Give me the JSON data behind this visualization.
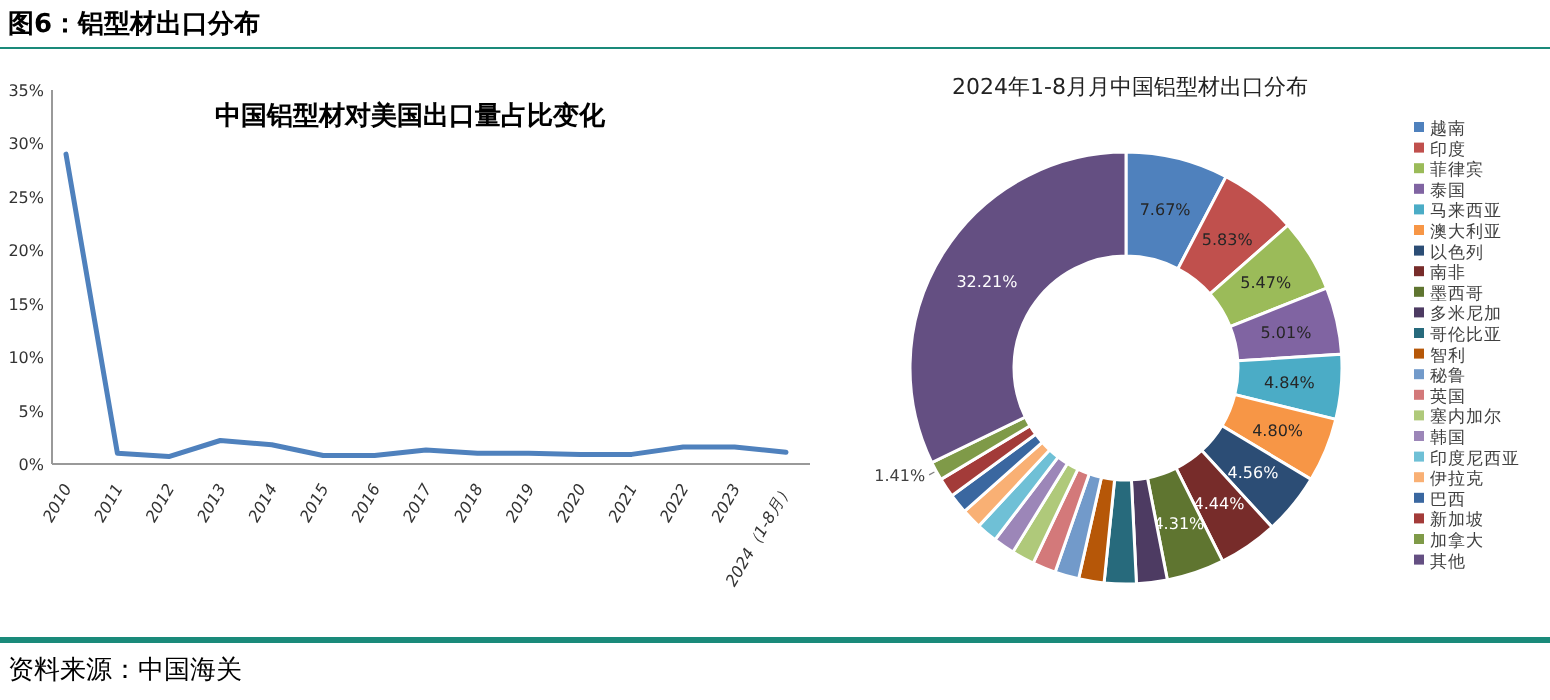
{
  "chart_data": [
    {
      "type": "line",
      "title": "中国铝型材对美国出口量占比变化",
      "categories": [
        "2010",
        "2011",
        "2012",
        "2013",
        "2014",
        "2015",
        "2016",
        "2017",
        "2018",
        "2019",
        "2020",
        "2021",
        "2022",
        "2023",
        "2024（1-8月）"
      ],
      "series": [
        {
          "color": "#4f81bd",
          "values": [
            29.0,
            1.0,
            0.7,
            2.2,
            1.8,
            0.8,
            0.8,
            1.3,
            1.0,
            1.0,
            0.9,
            0.9,
            1.6,
            1.6,
            1.1
          ]
        }
      ],
      "ylim": [
        0,
        35
      ],
      "yticks": [
        {
          "value": 0,
          "label": "0%"
        },
        {
          "value": 5,
          "label": "5%"
        },
        {
          "value": 10,
          "label": "10%"
        },
        {
          "value": 15,
          "label": "15%"
        },
        {
          "value": 20,
          "label": "20%"
        },
        {
          "value": 25,
          "label": "25%"
        },
        {
          "value": 30,
          "label": "30%"
        },
        {
          "value": 35,
          "label": "35%"
        }
      ],
      "grid": false,
      "marker": "none",
      "line_style": "solid",
      "annotations": [
        "图6：铝型材出口分布",
        "资料来源：中国海关"
      ]
    },
    {
      "type": "donut",
      "title": "2024年1-8月月中国铝型材出口分布",
      "categories": [
        "越南",
        "印度",
        "菲律宾",
        "泰国",
        "马来西亚",
        "澳大利亚",
        "以色列",
        "南非",
        "墨西哥",
        "多米尼加",
        "哥伦比亚",
        "智利",
        "秘鲁",
        "英国",
        "塞内加尔",
        "韩国",
        "印度尼西亚",
        "伊拉克",
        "巴西",
        "新加坡",
        "加拿大",
        "其他"
      ],
      "values": [
        7.67,
        5.83,
        5.47,
        5.01,
        4.84,
        4.8,
        4.56,
        4.44,
        4.31,
        2.3,
        2.39,
        1.9,
        1.8,
        1.75,
        1.7,
        1.6,
        1.57,
        1.51,
        1.48,
        1.45,
        1.41,
        32.21
      ],
      "colors": [
        "#4f81bd",
        "#c0504d",
        "#9bbb59",
        "#8064a2",
        "#4bacc6",
        "#f79646",
        "#2c4d75",
        "#772c2a",
        "#5f7530",
        "#4d3b62",
        "#276a7c",
        "#b65708",
        "#729aca",
        "#d3797a",
        "#afc97a",
        "#9c86b8",
        "#6fc0d6",
        "#f9b074",
        "#3a67a0",
        "#a33b39",
        "#7f9a48",
        "#644f82"
      ],
      "value_labels": [
        "7.67%",
        "5.83%",
        "5.47%",
        "5.01%",
        "4.84%",
        "4.80%",
        "4.56%",
        "4.44%",
        "4.31%",
        null,
        null,
        null,
        null,
        null,
        null,
        null,
        null,
        null,
        null,
        null,
        "1.41%",
        "32.21%"
      ],
      "legend": "right"
    }
  ]
}
